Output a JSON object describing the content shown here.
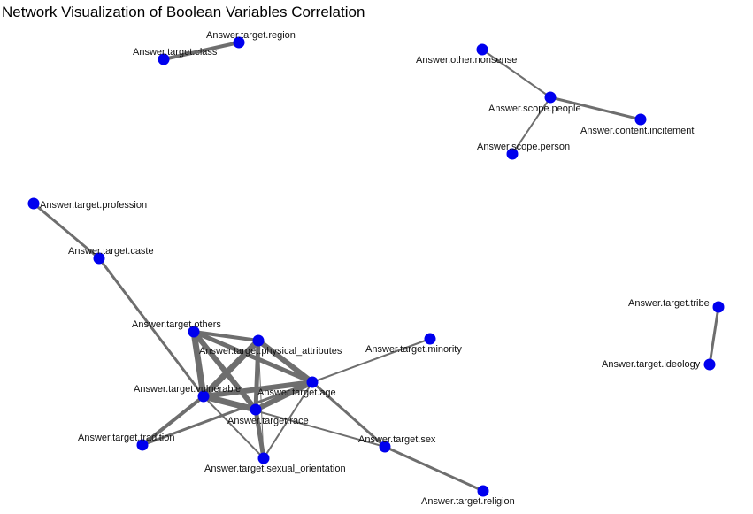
{
  "title": "Network Visualization of Boolean Variables Correlation",
  "colors": {
    "node": "#0000ee",
    "edge": "#6e6e6e",
    "label": "#111111",
    "background": "#ffffff"
  },
  "nodes": [
    {
      "id": "class",
      "label": "Answer.target.class"
    },
    {
      "id": "region",
      "label": "Answer.target.region"
    },
    {
      "id": "nonsense",
      "label": "Answer.other.nonsense"
    },
    {
      "id": "people",
      "label": "Answer.scope.people"
    },
    {
      "id": "incitement",
      "label": "Answer.content.incitement"
    },
    {
      "id": "person",
      "label": "Answer.scope.person"
    },
    {
      "id": "profession",
      "label": "Answer.target.profession"
    },
    {
      "id": "caste",
      "label": "Answer.target.caste"
    },
    {
      "id": "others",
      "label": "Answer.target.others"
    },
    {
      "id": "physical",
      "label": "Answer.target.physical_attributes"
    },
    {
      "id": "minority",
      "label": "Answer.target.minority"
    },
    {
      "id": "vulnerable",
      "label": "Answer.target.vulnerable"
    },
    {
      "id": "age",
      "label": "Answer.target.age"
    },
    {
      "id": "race",
      "label": "Answer.target.race"
    },
    {
      "id": "tradition",
      "label": "Answer.target.tradition"
    },
    {
      "id": "sex",
      "label": "Answer.target.sex"
    },
    {
      "id": "sexual",
      "label": "Answer.target.sexual_orientation"
    },
    {
      "id": "religion",
      "label": "Answer.target.religion"
    },
    {
      "id": "tribe",
      "label": "Answer.target.tribe"
    },
    {
      "id": "ideology",
      "label": "Answer.target.ideology"
    }
  ],
  "edges": [
    {
      "source": "class",
      "target": "region",
      "weight": 4
    },
    {
      "source": "nonsense",
      "target": "people",
      "weight": 2
    },
    {
      "source": "people",
      "target": "incitement",
      "weight": 3
    },
    {
      "source": "people",
      "target": "person",
      "weight": 2
    },
    {
      "source": "profession",
      "target": "caste",
      "weight": 3
    },
    {
      "source": "caste",
      "target": "vulnerable",
      "weight": 3
    },
    {
      "source": "others",
      "target": "physical",
      "weight": 4
    },
    {
      "source": "others",
      "target": "vulnerable",
      "weight": 7
    },
    {
      "source": "others",
      "target": "age",
      "weight": 5
    },
    {
      "source": "others",
      "target": "race",
      "weight": 6
    },
    {
      "source": "physical",
      "target": "vulnerable",
      "weight": 7
    },
    {
      "source": "physical",
      "target": "age",
      "weight": 6
    },
    {
      "source": "physical",
      "target": "race",
      "weight": 5
    },
    {
      "source": "physical",
      "target": "sexual",
      "weight": 1
    },
    {
      "source": "vulnerable",
      "target": "age",
      "weight": 6
    },
    {
      "source": "vulnerable",
      "target": "race",
      "weight": 7
    },
    {
      "source": "vulnerable",
      "target": "tradition",
      "weight": 4
    },
    {
      "source": "vulnerable",
      "target": "sexual",
      "weight": 2
    },
    {
      "source": "vulnerable",
      "target": "sex",
      "weight": 2
    },
    {
      "source": "age",
      "target": "race",
      "weight": 6
    },
    {
      "source": "age",
      "target": "minority",
      "weight": 2
    },
    {
      "source": "age",
      "target": "sex",
      "weight": 3
    },
    {
      "source": "age",
      "target": "tradition",
      "weight": 3
    },
    {
      "source": "age",
      "target": "sexual",
      "weight": 2
    },
    {
      "source": "race",
      "target": "sexual",
      "weight": 5
    },
    {
      "source": "sex",
      "target": "religion",
      "weight": 3
    },
    {
      "source": "tribe",
      "target": "ideology",
      "weight": 3
    }
  ]
}
